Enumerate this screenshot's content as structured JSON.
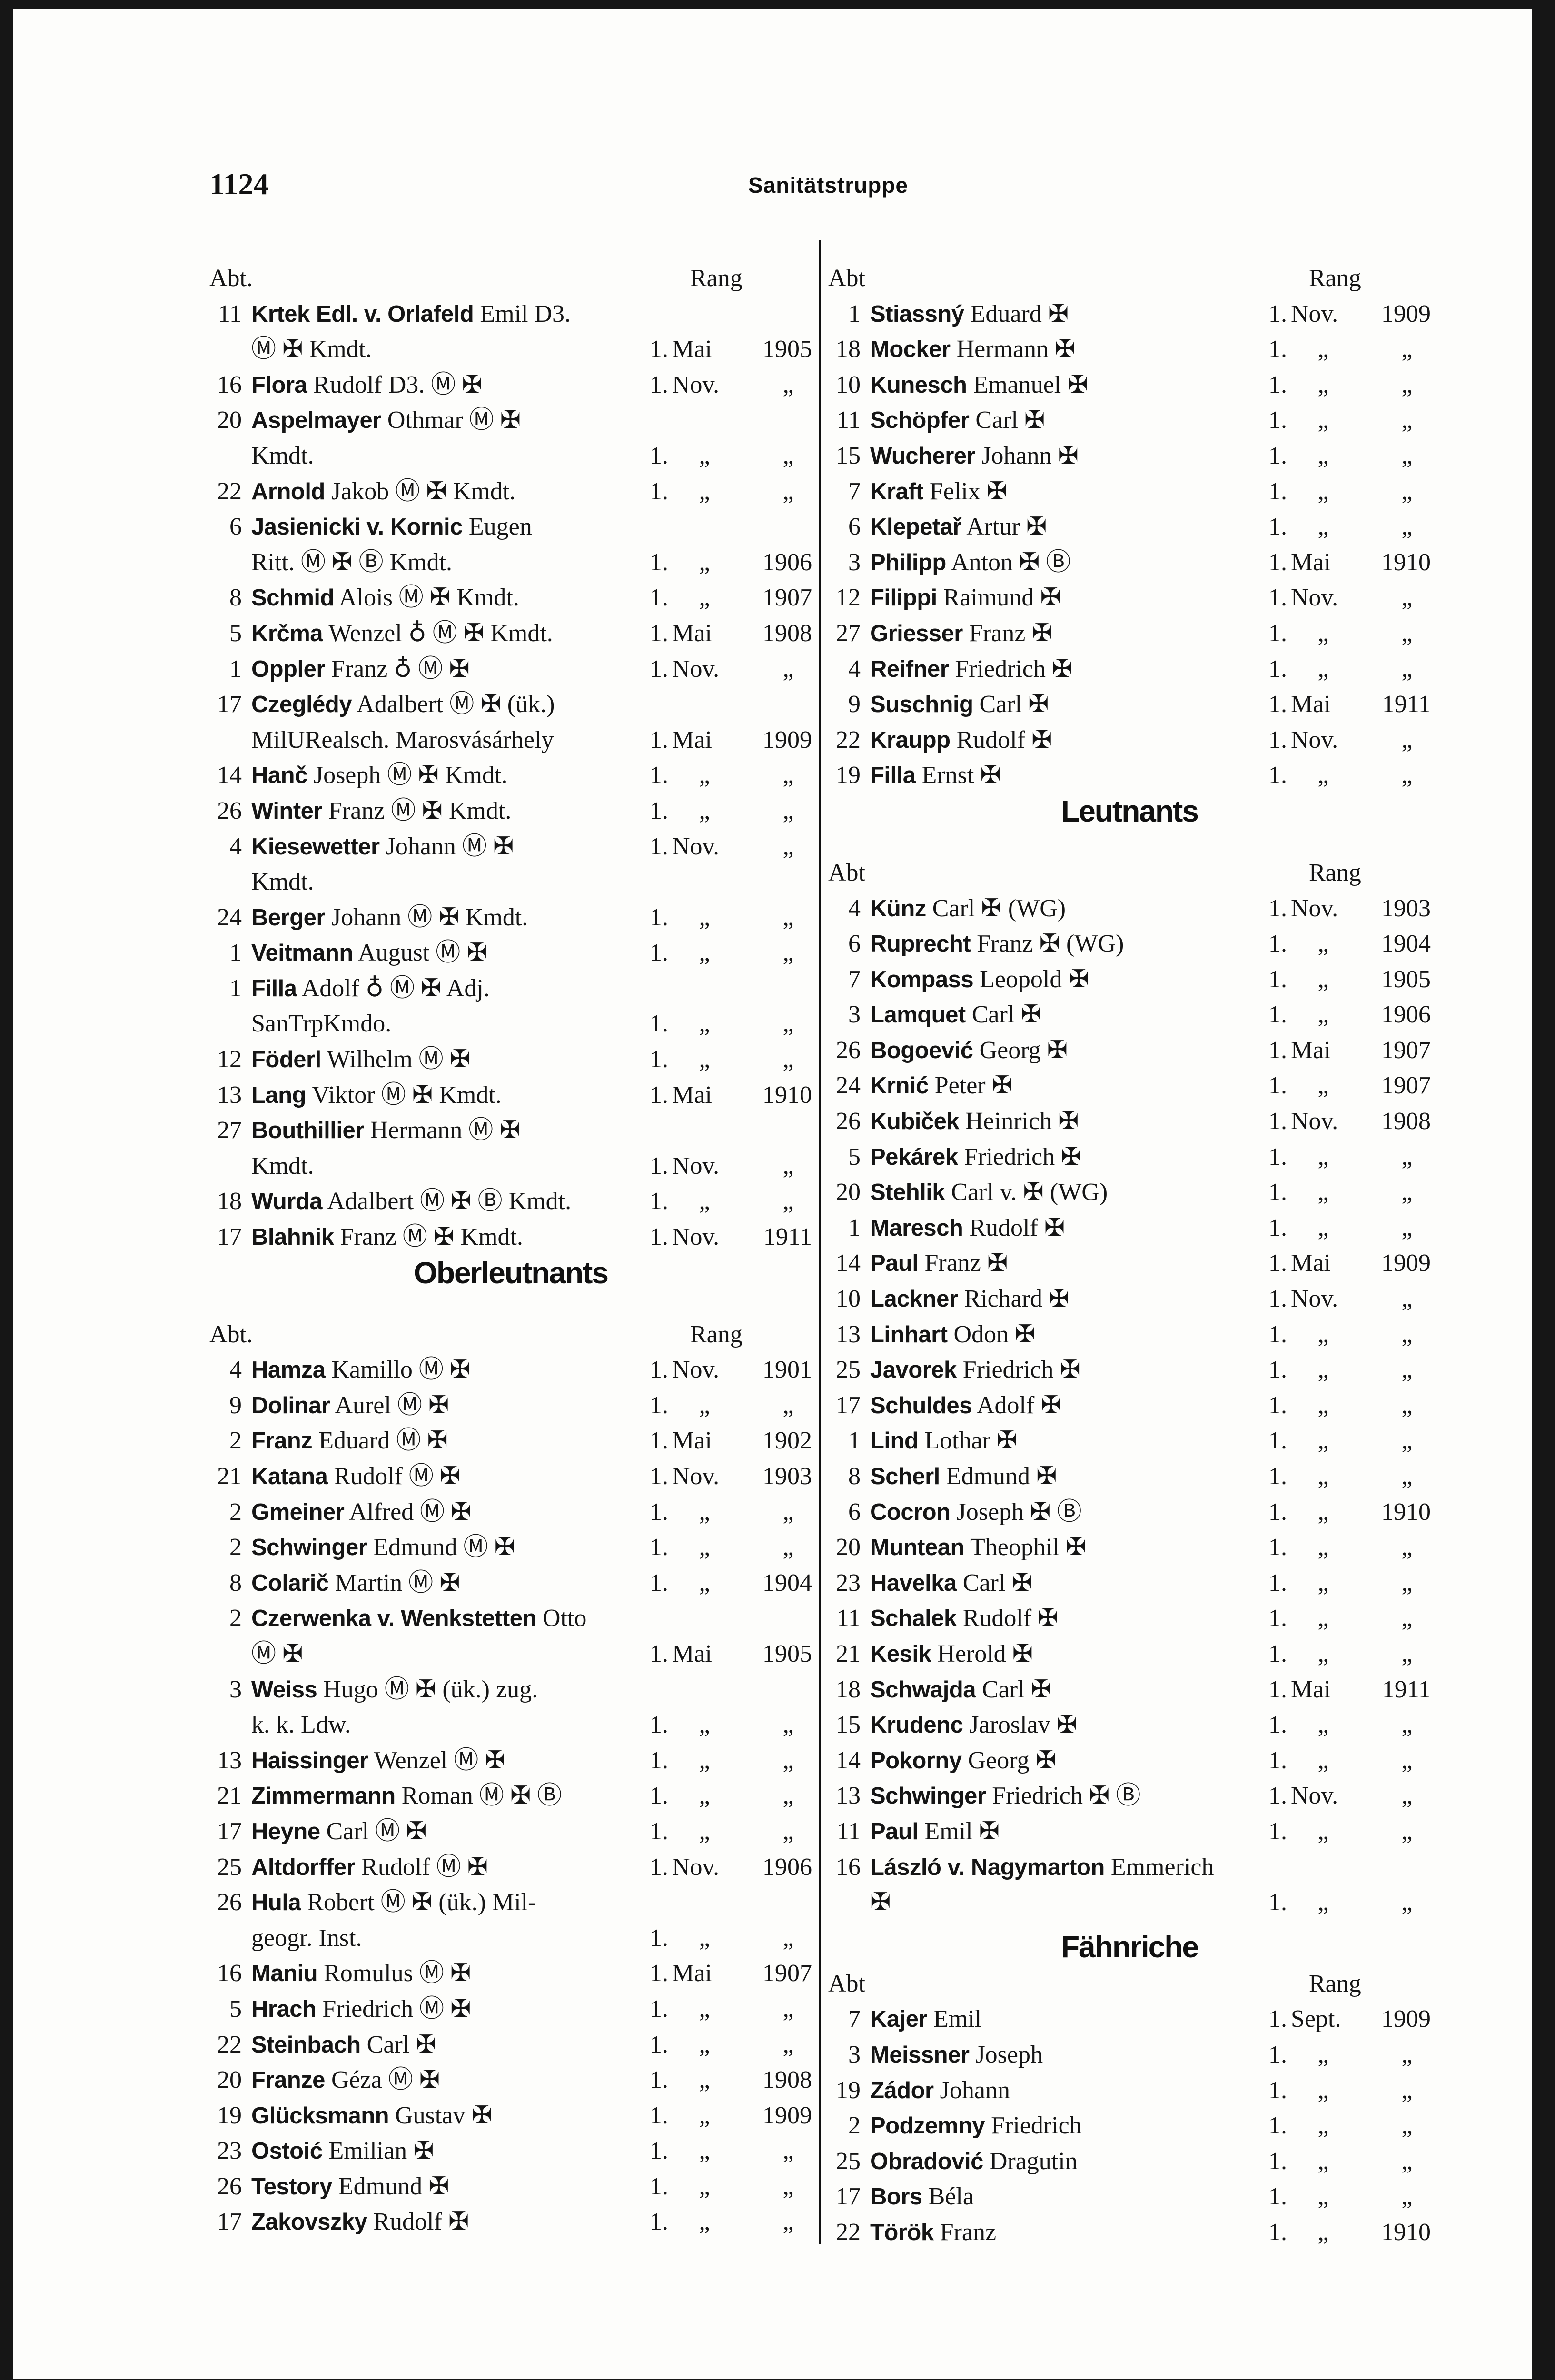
{
  "header": {
    "page_number": "1124",
    "title": "Sanitätstruppe"
  },
  "labels": {
    "abt": "Abt.",
    "abt_right": "Abt",
    "rang": "Rang"
  },
  "symbols": {
    "M": "Ⓜ",
    "cross": "✠",
    "B": "Ⓑ",
    "ring": "♁",
    "ditto": "„"
  },
  "left_column": {
    "sections": [
      {
        "heading": "",
        "entries": [
          {
            "abt": "11",
            "bold": "Krtek Edl. v. Orlafeld",
            "rest": "Emil D3.",
            "cont": "Ⓜ ✠ Kmdt.",
            "day": "1.",
            "month": "Mai",
            "year": "1905"
          },
          {
            "abt": "16",
            "bold": "Flora",
            "rest": "Rudolf D3. Ⓜ ✠",
            "day": "1.",
            "month": "Nov.",
            "year": "„"
          },
          {
            "abt": "20",
            "bold": "Aspelmayer",
            "rest": "Othmar Ⓜ ✠",
            "cont": "Kmdt.",
            "day": "1.",
            "month": "„",
            "year": "„"
          },
          {
            "abt": "22",
            "bold": "Arnold",
            "rest": "Jakob Ⓜ ✠ Kmdt.",
            "day": "1.",
            "month": "„",
            "year": "„"
          },
          {
            "abt": "6",
            "bold": "Jasienicki v. Kornic",
            "rest": "Eugen",
            "cont": "Ritt. Ⓜ ✠ Ⓑ Kmdt.",
            "day": "1.",
            "month": "„",
            "year": "1906"
          },
          {
            "abt": "8",
            "bold": "Schmid",
            "rest": "Alois Ⓜ ✠ Kmdt.",
            "day": "1.",
            "month": "„",
            "year": "1907"
          },
          {
            "abt": "5",
            "bold": "Krčma",
            "rest": "Wenzel ♁ Ⓜ ✠ Kmdt.",
            "day": "1.",
            "month": "Mai",
            "year": "1908"
          },
          {
            "abt": "1",
            "bold": "Oppler",
            "rest": "Franz ♁ Ⓜ ✠",
            "day": "1.",
            "month": "Nov.",
            "year": "„"
          },
          {
            "abt": "17",
            "bold": "Czeglédy",
            "rest": "Adalbert Ⓜ ✠ (ük.)",
            "cont": "MilURealsch. Marosvásárhely",
            "day": "1.",
            "month": "Mai",
            "year": "1909"
          },
          {
            "abt": "14",
            "bold": "Hanč",
            "rest": "Joseph Ⓜ ✠ Kmdt.",
            "day": "1.",
            "month": "„",
            "year": "„"
          },
          {
            "abt": "26",
            "bold": "Winter",
            "rest": "Franz Ⓜ ✠ Kmdt.",
            "day": "1.",
            "month": "„",
            "year": "„"
          },
          {
            "abt": "4",
            "bold": "Kiesewetter",
            "rest": "Johann Ⓜ ✠",
            "cont": "Kmdt.",
            "rang_first_line": true,
            "day": "1.",
            "month": "Nov.",
            "year": "„"
          },
          {
            "abt": "24",
            "bold": "Berger",
            "rest": "Johann Ⓜ ✠ Kmdt.",
            "day": "1.",
            "month": "„",
            "year": "„"
          },
          {
            "abt": "1",
            "bold": "Veitmann",
            "rest": "August Ⓜ ✠",
            "day": "1.",
            "month": "„",
            "year": "„"
          },
          {
            "abt": "1",
            "bold": "Filla",
            "rest": "Adolf ♁ Ⓜ ✠ Adj.",
            "cont": "SanTrpKmdo.",
            "day": "1.",
            "month": "„",
            "year": "„"
          },
          {
            "abt": "12",
            "bold": "Föderl",
            "rest": "Wilhelm Ⓜ ✠",
            "day": "1.",
            "month": "„",
            "year": "„"
          },
          {
            "abt": "13",
            "bold": "Lang",
            "rest": "Viktor Ⓜ ✠ Kmdt.",
            "day": "1.",
            "month": "Mai",
            "year": "1910"
          },
          {
            "abt": "27",
            "bold": "Bouthillier",
            "rest": "Hermann Ⓜ ✠",
            "cont": "Kmdt.",
            "day": "1.",
            "month": "Nov.",
            "year": "„"
          },
          {
            "abt": "18",
            "bold": "Wurda",
            "rest": "Adalbert Ⓜ ✠ Ⓑ Kmdt.",
            "day": "1.",
            "month": "„",
            "year": "„"
          },
          {
            "abt": "17",
            "bold": "Blahnik",
            "rest": "Franz Ⓜ ✠ Kmdt.",
            "day": "1.",
            "month": "Nov.",
            "year": "1911"
          }
        ]
      },
      {
        "heading": "Oberleutnants",
        "entries": [
          {
            "abt": "4",
            "bold": "Hamza",
            "rest": "Kamillo Ⓜ ✠",
            "day": "1.",
            "month": "Nov.",
            "year": "1901"
          },
          {
            "abt": "9",
            "bold": "Dolinar",
            "rest": "Aurel Ⓜ ✠",
            "day": "1.",
            "month": "„",
            "year": "„"
          },
          {
            "abt": "2",
            "bold": "Franz",
            "rest": "Eduard Ⓜ ✠",
            "day": "1.",
            "month": "Mai",
            "year": "1902"
          },
          {
            "abt": "21",
            "bold": "Katana",
            "rest": "Rudolf Ⓜ ✠",
            "day": "1.",
            "month": "Nov.",
            "year": "1903"
          },
          {
            "abt": "2",
            "bold": "Gmeiner",
            "rest": "Alfred Ⓜ ✠",
            "day": "1.",
            "month": "„",
            "year": "„"
          },
          {
            "abt": "2",
            "bold": "Schwinger",
            "rest": "Edmund Ⓜ ✠",
            "day": "1.",
            "month": "„",
            "year": "„"
          },
          {
            "abt": "8",
            "bold": "Colarič",
            "rest": "Martin Ⓜ ✠",
            "day": "1.",
            "month": "„",
            "year": "1904"
          },
          {
            "abt": "2",
            "bold": "Czerwenka v. Wenkstetten",
            "rest": "Otto",
            "cont": "Ⓜ ✠",
            "day": "1.",
            "month": "Mai",
            "year": "1905"
          },
          {
            "abt": "3",
            "bold": "Weiss",
            "rest": "Hugo Ⓜ ✠ (ük.) zug.",
            "cont": "k. k. Ldw.",
            "day": "1.",
            "month": "„",
            "year": "„"
          },
          {
            "abt": "13",
            "bold": "Haissinger",
            "rest": "Wenzel Ⓜ ✠",
            "day": "1.",
            "month": "„",
            "year": "„"
          },
          {
            "abt": "21",
            "bold": "Zimmermann",
            "rest": "Roman Ⓜ ✠ Ⓑ",
            "day": "1.",
            "month": "„",
            "year": "„"
          },
          {
            "abt": "17",
            "bold": "Heyne",
            "rest": "Carl Ⓜ ✠",
            "day": "1.",
            "month": "„",
            "year": "„"
          },
          {
            "abt": "25",
            "bold": "Altdorffer",
            "rest": "Rudolf Ⓜ ✠",
            "day": "1.",
            "month": "Nov.",
            "year": "1906"
          },
          {
            "abt": "26",
            "bold": "Hula",
            "rest": "Robert Ⓜ ✠ (ük.) Mil-",
            "cont": "geogr. Inst.",
            "day": "1.",
            "month": "„",
            "year": "„"
          },
          {
            "abt": "16",
            "bold": "Maniu",
            "rest": "Romulus Ⓜ ✠",
            "day": "1.",
            "month": "Mai",
            "year": "1907"
          },
          {
            "abt": "5",
            "bold": "Hrach",
            "rest": "Friedrich Ⓜ ✠",
            "day": "1.",
            "month": "„",
            "year": "„"
          },
          {
            "abt": "22",
            "bold": "Steinbach",
            "rest": "Carl ✠",
            "day": "1.",
            "month": "„",
            "year": "„"
          },
          {
            "abt": "20",
            "bold": "Franze",
            "rest": "Géza Ⓜ ✠",
            "day": "1.",
            "month": "„",
            "year": "1908"
          },
          {
            "abt": "19",
            "bold": "Glücksmann",
            "rest": "Gustav ✠",
            "day": "1.",
            "month": "„",
            "year": "1909"
          },
          {
            "abt": "23",
            "bold": "Ostoić",
            "rest": "Emilian ✠",
            "day": "1.",
            "month": "„",
            "year": "„"
          },
          {
            "abt": "26",
            "bold": "Testory",
            "rest": "Edmund ✠",
            "day": "1.",
            "month": "„",
            "year": "„"
          },
          {
            "abt": "17",
            "bold": "Zakovszky",
            "rest": "Rudolf ✠",
            "day": "1.",
            "month": "„",
            "year": "„"
          }
        ]
      }
    ]
  },
  "right_column": {
    "sections": [
      {
        "heading": "",
        "entries": [
          {
            "abt": "1",
            "bold": "Stiassný",
            "rest": "Eduard ✠",
            "day": "1.",
            "month": "Nov.",
            "year": "1909"
          },
          {
            "abt": "18",
            "bold": "Mocker",
            "rest": "Hermann ✠",
            "day": "1.",
            "month": "„",
            "year": "„"
          },
          {
            "abt": "10",
            "bold": "Kunesch",
            "rest": "Emanuel ✠",
            "day": "1.",
            "month": "„",
            "year": "„"
          },
          {
            "abt": "11",
            "bold": "Schöpfer",
            "rest": "Carl ✠",
            "day": "1.",
            "month": "„",
            "year": "„"
          },
          {
            "abt": "15",
            "bold": "Wucherer",
            "rest": "Johann ✠",
            "day": "1.",
            "month": "„",
            "year": "„"
          },
          {
            "abt": "7",
            "bold": "Kraft",
            "rest": "Felix ✠",
            "day": "1.",
            "month": "„",
            "year": "„"
          },
          {
            "abt": "6",
            "bold": "Klepetař",
            "rest": "Artur ✠",
            "day": "1.",
            "month": "„",
            "year": "„"
          },
          {
            "abt": "3",
            "bold": "Philipp",
            "rest": "Anton ✠ Ⓑ",
            "day": "1.",
            "month": "Mai",
            "year": "1910"
          },
          {
            "abt": "12",
            "bold": "Filippi",
            "rest": "Raimund ✠",
            "day": "1.",
            "month": "Nov.",
            "year": "„"
          },
          {
            "abt": "27",
            "bold": "Griesser",
            "rest": "Franz ✠",
            "day": "1.",
            "month": "„",
            "year": "„"
          },
          {
            "abt": "4",
            "bold": "Reifner",
            "rest": "Friedrich ✠",
            "day": "1.",
            "month": "„",
            "year": "„"
          },
          {
            "abt": "9",
            "bold": "Suschnig",
            "rest": "Carl ✠",
            "day": "1.",
            "month": "Mai",
            "year": "1911"
          },
          {
            "abt": "22",
            "bold": "Kraupp",
            "rest": "Rudolf ✠",
            "day": "1.",
            "month": "Nov.",
            "year": "„"
          },
          {
            "abt": "19",
            "bold": "Filla",
            "rest": "Ernst ✠",
            "day": "1.",
            "month": "„",
            "year": "„"
          }
        ]
      },
      {
        "heading": "Leutnants",
        "entries": [
          {
            "abt": "4",
            "bold": "Künz",
            "rest": "Carl ✠ (WG)",
            "day": "1.",
            "month": "Nov.",
            "year": "1903"
          },
          {
            "abt": "6",
            "bold": "Ruprecht",
            "rest": "Franz ✠ (WG)",
            "day": "1.",
            "month": "„",
            "year": "1904"
          },
          {
            "abt": "7",
            "bold": "Kompass",
            "rest": "Leopold ✠",
            "day": "1.",
            "month": "„",
            "year": "1905"
          },
          {
            "abt": "3",
            "bold": "Lamquet",
            "rest": "Carl ✠",
            "day": "1.",
            "month": "„",
            "year": "1906"
          },
          {
            "abt": "26",
            "bold": "Bogoević",
            "rest": "Georg ✠",
            "day": "1.",
            "month": "Mai",
            "year": "1907"
          },
          {
            "abt": "24",
            "bold": "Krnić",
            "rest": "Peter ✠",
            "day": "1.",
            "month": "„",
            "year": "1907"
          },
          {
            "abt": "26",
            "bold": "Kubiček",
            "rest": "Heinrich ✠",
            "day": "1.",
            "month": "Nov.",
            "year": "1908"
          },
          {
            "abt": "5",
            "bold": "Pekárek",
            "rest": "Friedrich ✠",
            "day": "1.",
            "month": "„",
            "year": "„"
          },
          {
            "abt": "20",
            "bold": "Stehlik",
            "rest": "Carl v. ✠ (WG)",
            "day": "1.",
            "month": "„",
            "year": "„"
          },
          {
            "abt": "1",
            "bold": "Maresch",
            "rest": "Rudolf ✠",
            "day": "1.",
            "month": "„",
            "year": "„"
          },
          {
            "abt": "14",
            "bold": "Paul",
            "rest": "Franz ✠",
            "day": "1.",
            "month": "Mai",
            "year": "1909"
          },
          {
            "abt": "10",
            "bold": "Lackner",
            "rest": "Richard ✠",
            "day": "1.",
            "month": "Nov.",
            "year": "„"
          },
          {
            "abt": "13",
            "bold": "Linhart",
            "rest": "Odon ✠",
            "day": "1.",
            "month": "„",
            "year": "„"
          },
          {
            "abt": "25",
            "bold": "Javorek",
            "rest": "Friedrich ✠",
            "day": "1.",
            "month": "„",
            "year": "„"
          },
          {
            "abt": "17",
            "bold": "Schuldes",
            "rest": "Adolf ✠",
            "day": "1.",
            "month": "„",
            "year": "„"
          },
          {
            "abt": "1",
            "bold": "Lind",
            "rest": "Lothar ✠",
            "day": "1.",
            "month": "„",
            "year": "„"
          },
          {
            "abt": "8",
            "bold": "Scherl",
            "rest": "Edmund ✠",
            "day": "1.",
            "month": "„",
            "year": "„"
          },
          {
            "abt": "6",
            "bold": "Cocron",
            "rest": "Joseph ✠ Ⓑ",
            "day": "1.",
            "month": "„",
            "year": "1910"
          },
          {
            "abt": "20",
            "bold": "Muntean",
            "rest": "Theophil ✠",
            "day": "1.",
            "month": "„",
            "year": "„"
          },
          {
            "abt": "23",
            "bold": "Havelka",
            "rest": "Carl ✠",
            "day": "1.",
            "month": "„",
            "year": "„"
          },
          {
            "abt": "11",
            "bold": "Schalek",
            "rest": "Rudolf ✠",
            "day": "1.",
            "month": "„",
            "year": "„"
          },
          {
            "abt": "21",
            "bold": "Kesik",
            "rest": "Herold ✠",
            "day": "1.",
            "month": "„",
            "year": "„"
          },
          {
            "abt": "18",
            "bold": "Schwajda",
            "rest": "Carl ✠",
            "day": "1.",
            "month": "Mai",
            "year": "1911"
          },
          {
            "abt": "15",
            "bold": "Krudenc",
            "rest": "Jaroslav ✠",
            "day": "1.",
            "month": "„",
            "year": "„"
          },
          {
            "abt": "14",
            "bold": "Pokorny",
            "rest": "Georg ✠",
            "day": "1.",
            "month": "„",
            "year": "„"
          },
          {
            "abt": "13",
            "bold": "Schwinger",
            "rest": "Friedrich ✠ Ⓑ",
            "day": "1.",
            "month": "Nov.",
            "year": "„"
          },
          {
            "abt": "11",
            "bold": "Paul",
            "rest": "Emil ✠",
            "day": "1.",
            "month": "„",
            "year": "„"
          },
          {
            "abt": "16",
            "bold": "László v. Nagymarton",
            "rest": "Emmerich",
            "cont": "✠",
            "day": "1.",
            "month": "„",
            "year": "„"
          }
        ]
      },
      {
        "heading": "Fähnriche",
        "entries": [
          {
            "abt": "7",
            "bold": "Kajer",
            "rest": "Emil",
            "day": "1.",
            "month": "Sept.",
            "year": "1909"
          },
          {
            "abt": "3",
            "bold": "Meissner",
            "rest": "Joseph",
            "day": "1.",
            "month": "„",
            "year": "„"
          },
          {
            "abt": "19",
            "bold": "Zádor",
            "rest": "Johann",
            "day": "1.",
            "month": "„",
            "year": "„"
          },
          {
            "abt": "2",
            "bold": "Podzemny",
            "rest": "Friedrich",
            "day": "1.",
            "month": "„",
            "year": "„"
          },
          {
            "abt": "25",
            "bold": "Obradović",
            "rest": "Dragutin",
            "day": "1.",
            "month": "„",
            "year": "„"
          },
          {
            "abt": "17",
            "bold": "Bors",
            "rest": "Béla",
            "day": "1.",
            "month": "„",
            "year": "„"
          },
          {
            "abt": "22",
            "bold": "Török",
            "rest": "Franz",
            "day": "1.",
            "month": "„",
            "year": "1910"
          }
        ]
      }
    ]
  }
}
